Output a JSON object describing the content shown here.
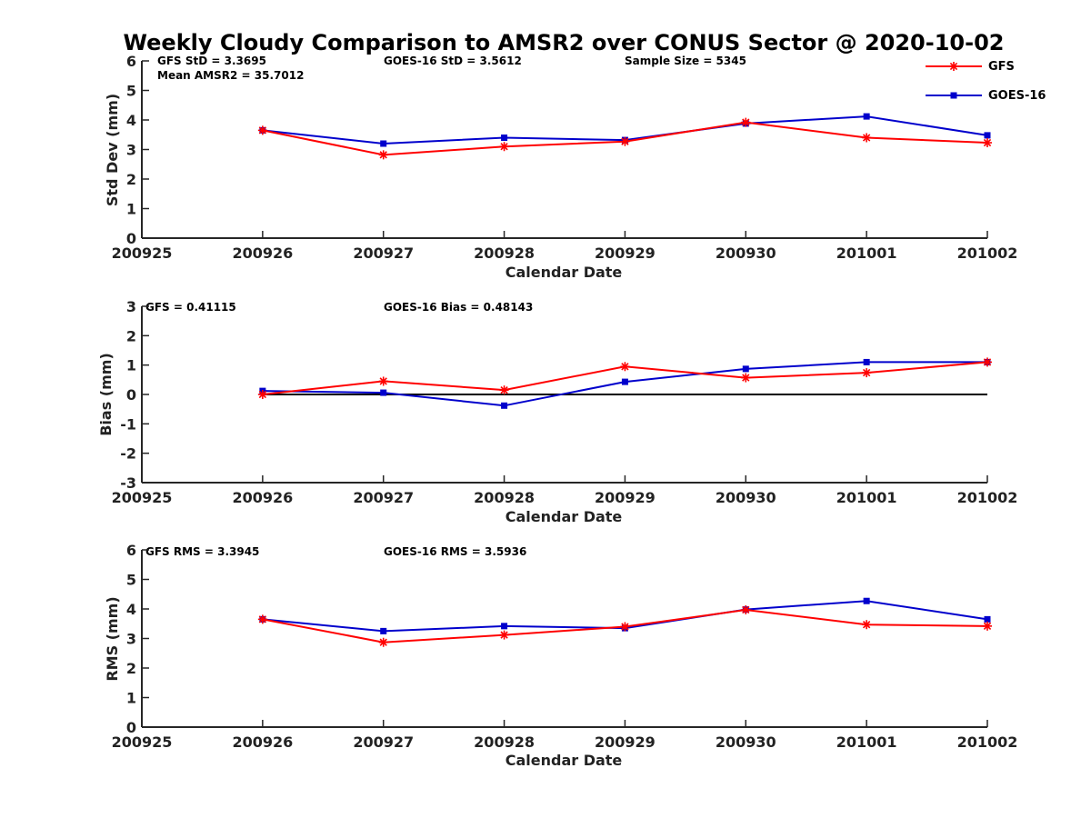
{
  "colors": {
    "gfs": "#ff0000",
    "goes": "#0000cc",
    "axis": "#262626"
  },
  "chart_data": {
    "title": "Weekly Cloudy Comparison to AMSR2 over CONUS Sector @ 2020-10-02",
    "legend": {
      "position": "top-right",
      "entries": [
        {
          "name": "GFS",
          "color": "#ff0000",
          "marker": "asterisk"
        },
        {
          "name": "GOES-16",
          "color": "#0000cc",
          "marker": "square"
        }
      ]
    },
    "panels": [
      {
        "type": "line",
        "xlabel": "Calendar Date",
        "ylabel": "Std Dev (mm)",
        "x_ticks": [
          "200925",
          "200926",
          "200927",
          "200928",
          "200929",
          "200930",
          "201001",
          "201002"
        ],
        "ylim": [
          0,
          6
        ],
        "y_ticks": [
          "0",
          "1",
          "2",
          "3",
          "4",
          "5",
          "6"
        ],
        "zero_line": false,
        "annotations": [
          {
            "text": "GFS StD = 3.3695"
          },
          {
            "text": "Mean AMSR2 = 35.7012"
          },
          {
            "text": "GOES-16 StD = 3.5612"
          },
          {
            "text": "Sample Size = 5345"
          }
        ],
        "series": [
          {
            "name": "GFS",
            "values": [
              3.65,
              2.82,
              3.1,
              3.27,
              3.92,
              3.4,
              3.23
            ]
          },
          {
            "name": "GOES-16",
            "values": [
              3.65,
              3.2,
              3.4,
              3.32,
              3.88,
              4.12,
              3.48
            ]
          }
        ]
      },
      {
        "type": "line",
        "xlabel": "Calendar Date",
        "ylabel": "Bias (mm)",
        "x_ticks": [
          "200925",
          "200926",
          "200927",
          "200928",
          "200929",
          "200930",
          "201001",
          "201002"
        ],
        "ylim": [
          -3,
          3
        ],
        "y_ticks": [
          "-3",
          "-2",
          "-1",
          "0",
          "1",
          "2",
          "3"
        ],
        "zero_line": true,
        "annotations": [
          {
            "text": "GFS = 0.41115"
          },
          {
            "text": "GOES-16 Bias  = 0.48143"
          }
        ],
        "series": [
          {
            "name": "GFS",
            "values": [
              0.0,
              0.45,
              0.15,
              0.95,
              0.57,
              0.74,
              1.1
            ]
          },
          {
            "name": "GOES-16",
            "values": [
              0.12,
              0.06,
              -0.38,
              0.43,
              0.87,
              1.1,
              1.1
            ]
          }
        ]
      },
      {
        "type": "line",
        "xlabel": "Calendar Date",
        "ylabel": "RMS (mm)",
        "x_ticks": [
          "200925",
          "200926",
          "200927",
          "200928",
          "200929",
          "200930",
          "201001",
          "201002"
        ],
        "ylim": [
          0,
          6
        ],
        "y_ticks": [
          "0",
          "1",
          "2",
          "3",
          "4",
          "5",
          "6"
        ],
        "zero_line": false,
        "annotations": [
          {
            "text": "GFS RMS = 3.3945"
          },
          {
            "text": "GOES-16 RMS = 3.5936"
          }
        ],
        "series": [
          {
            "name": "GFS",
            "values": [
              3.65,
              2.87,
              3.12,
              3.4,
              3.97,
              3.47,
              3.42
            ]
          },
          {
            "name": "GOES-16",
            "values": [
              3.65,
              3.25,
              3.42,
              3.35,
              3.98,
              4.27,
              3.65
            ]
          }
        ]
      }
    ]
  }
}
